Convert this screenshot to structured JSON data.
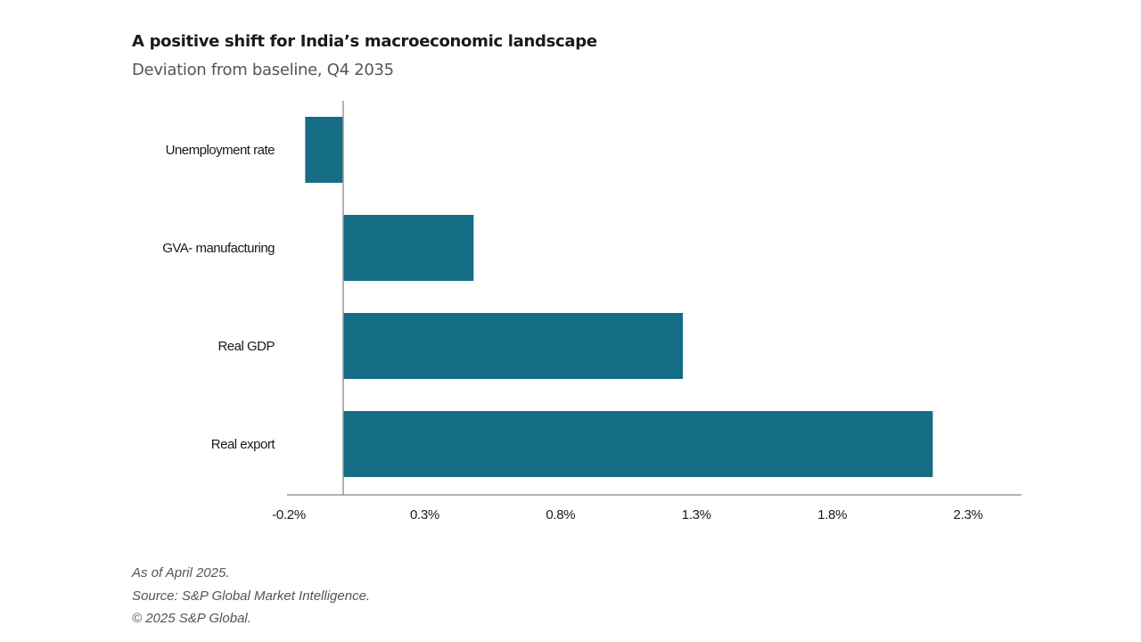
{
  "colors": {
    "bar": "#156C85",
    "axis": "#999999",
    "text": "#1a1a1a"
  },
  "chart_data": {
    "type": "bar",
    "orientation": "horizontal",
    "title": "A positive shift for India’s macroeconomic landscape",
    "subtitle": "Deviation from baseline, Q4 2035",
    "categories": [
      "Unemployment rate",
      "GVA- manufacturing",
      "Real GDP",
      "Real export"
    ],
    "values": [
      -0.14,
      0.48,
      1.25,
      2.17
    ],
    "unit": "%",
    "xlim": [
      -0.2,
      2.5
    ],
    "xticks": [
      -0.2,
      0.3,
      0.8,
      1.3,
      1.8,
      2.3
    ],
    "xtick_labels": [
      "-0.2%",
      "0.3%",
      "0.8%",
      "1.3%",
      "1.8%",
      "2.3%"
    ],
    "grid": false,
    "legend": "none"
  },
  "footer": {
    "as_of": "As of April 2025.",
    "source": "Source: S&P Global Market Intelligence.",
    "copyright": "© 2025 S&P Global."
  }
}
